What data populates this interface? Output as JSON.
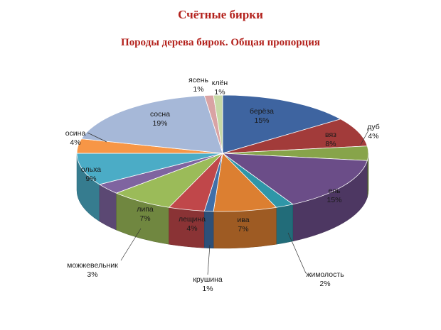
{
  "header": {
    "title": "Счётные бирки",
    "subtitle": "Породы дерева бирок. Общая пропорция"
  },
  "chart_data": {
    "type": "pie",
    "title": "Породы дерева бирок. Общая пропорция",
    "start_category": "берёза",
    "legend": "none",
    "slices": [
      {
        "label": "берёза",
        "value": 15,
        "pct": "15%",
        "color": "#3e64a0"
      },
      {
        "label": "вяз",
        "value": 8,
        "pct": "8%",
        "color": "#a23b3a"
      },
      {
        "label": "дуб",
        "value": 4,
        "pct": "4%",
        "color": "#87a44a"
      },
      {
        "label": "ель",
        "value": 15,
        "pct": "15%",
        "color": "#6b4d88"
      },
      {
        "label": "жимолость",
        "value": 2,
        "pct": "2%",
        "color": "#2f96a8"
      },
      {
        "label": "ива",
        "value": 7,
        "pct": "7%",
        "color": "#dc7f31"
      },
      {
        "label": "крушина",
        "value": 1,
        "pct": "1%",
        "color": "#3f6fa8"
      },
      {
        "label": "лещина",
        "value": 4,
        "pct": "4%",
        "color": "#c0474a"
      },
      {
        "label": "липа",
        "value": 7,
        "pct": "7%",
        "color": "#9bbb59"
      },
      {
        "label": "можжевельник",
        "value": 3,
        "pct": "3%",
        "color": "#7f64a0"
      },
      {
        "label": "ольха",
        "value": 9,
        "pct": "9%",
        "color": "#4bacc6"
      },
      {
        "label": "осина",
        "value": 4,
        "pct": "4%",
        "color": "#f79646"
      },
      {
        "label": "сосна",
        "value": 19,
        "pct": "19%",
        "color": "#a6b8d8"
      },
      {
        "label": "ясень",
        "value": 1,
        "pct": "1%",
        "color": "#d9a3a4"
      },
      {
        "label": "клён",
        "value": 1,
        "pct": "1%",
        "color": "#c7d9a6"
      }
    ]
  }
}
